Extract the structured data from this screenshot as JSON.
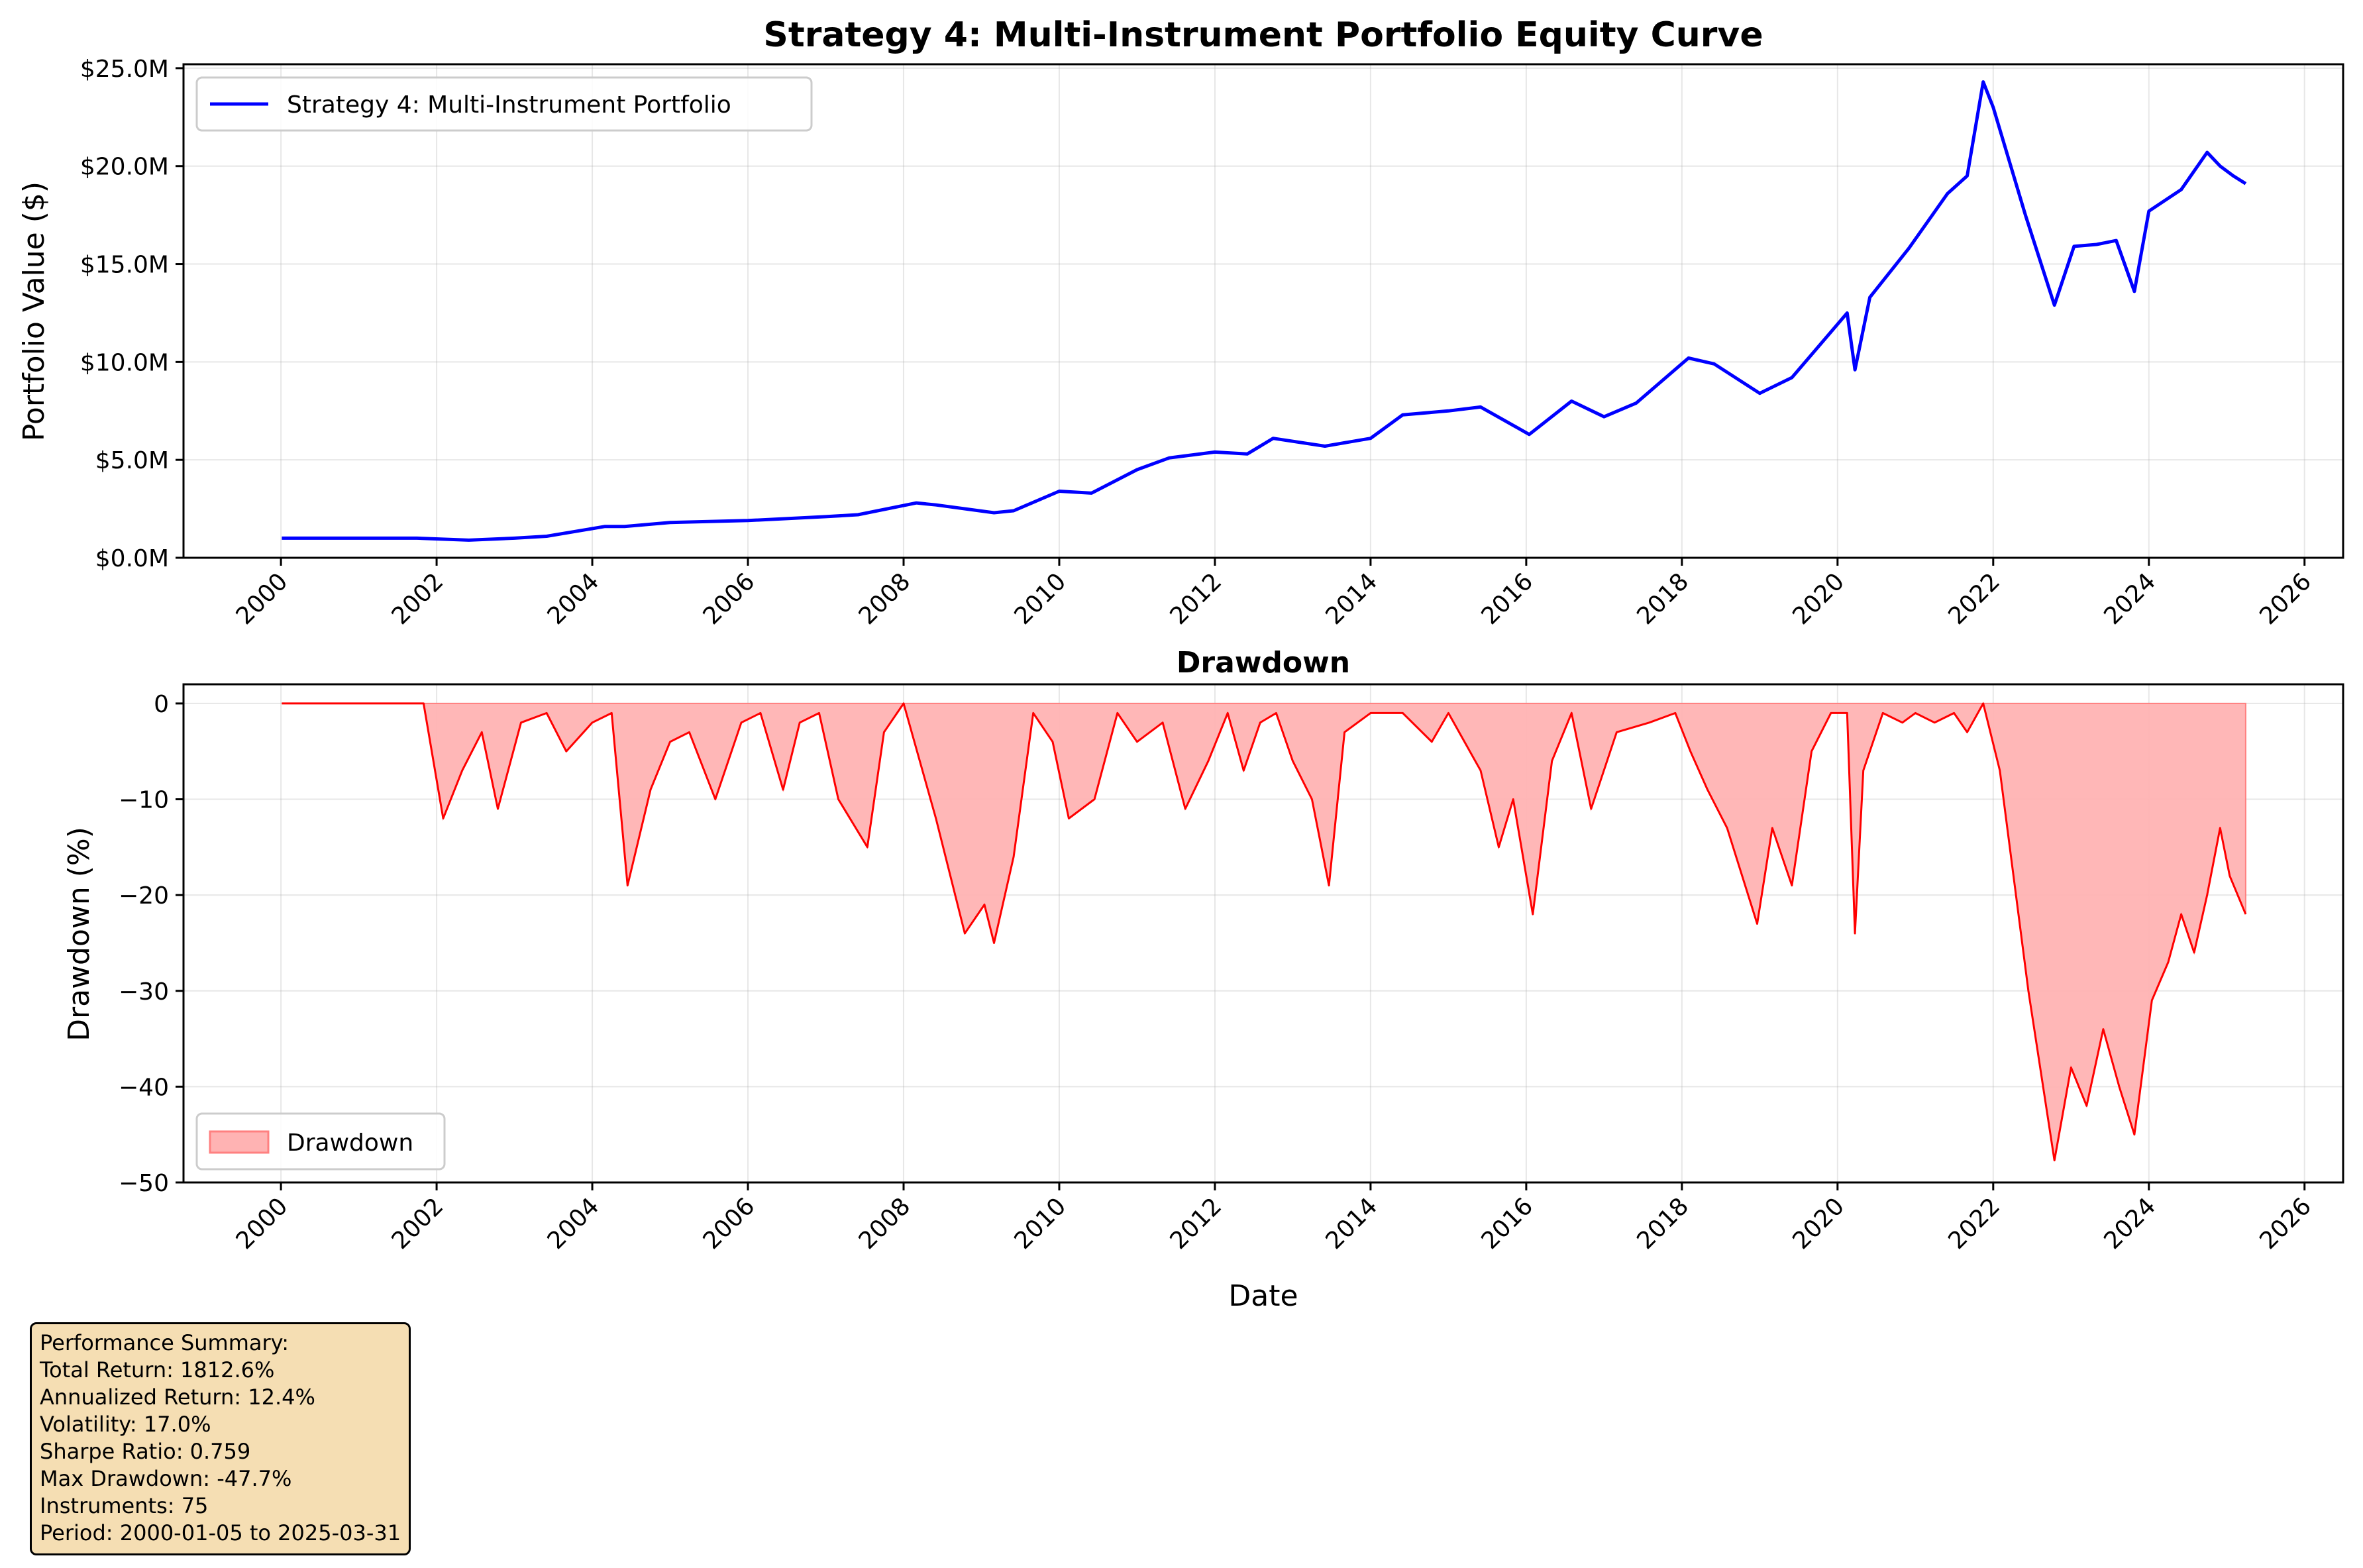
{
  "chart_data": [
    {
      "type": "line",
      "title": "Strategy 4: Multi-Instrument Portfolio Equity Curve",
      "xlabel": "",
      "ylabel": "Portfolio Value ($)",
      "xlim": [
        "1998-10-01",
        "2026-07-01"
      ],
      "ylim": [
        0,
        25.2
      ],
      "x_ticks": [
        "2000",
        "2002",
        "2004",
        "2006",
        "2008",
        "2010",
        "2012",
        "2014",
        "2016",
        "2018",
        "2020",
        "2022",
        "2024",
        "2026"
      ],
      "y_ticks": [
        "$0.0M",
        "$5.0M",
        "$10.0M",
        "$15.0M",
        "$20.0M",
        "$25.0M"
      ],
      "y_tick_values": [
        0,
        5,
        10,
        15,
        20,
        25
      ],
      "grid": true,
      "legend": {
        "position": "upper-left",
        "entries": [
          "Strategy 4: Multi-Instrument Portfolio"
        ]
      },
      "series": [
        {
          "name": "Strategy 4: Multi-Instrument Portfolio",
          "color": "#0000ff",
          "x": [
            "2000-01-05",
            "2001-10-01",
            "2002-06-01",
            "2003-01-01",
            "2003-06-01",
            "2004-03-01",
            "2004-06-01",
            "2005-01-01",
            "2006-01-01",
            "2007-01-01",
            "2007-06-01",
            "2008-03-01",
            "2008-06-01",
            "2009-03-01",
            "2009-06-01",
            "2010-01-01",
            "2010-06-01",
            "2011-01-01",
            "2011-06-01",
            "2012-01-01",
            "2012-06-01",
            "2012-10-01",
            "2013-06-01",
            "2014-01-01",
            "2014-06-01",
            "2015-01-01",
            "2015-06-01",
            "2016-01-15",
            "2016-08-01",
            "2017-01-01",
            "2017-06-01",
            "2018-02-01",
            "2018-06-01",
            "2019-01-01",
            "2019-06-01",
            "2020-02-15",
            "2020-03-23",
            "2020-06-01",
            "2020-12-01",
            "2021-06-01",
            "2021-09-01",
            "2021-11-15",
            "2022-01-01",
            "2022-06-01",
            "2022-10-15",
            "2023-01-15",
            "2023-05-01",
            "2023-08-01",
            "2023-10-25",
            "2024-01-01",
            "2024-06-01",
            "2024-10-01",
            "2024-12-01",
            "2025-02-01",
            "2025-03-31"
          ],
          "y": [
            1.0,
            1.0,
            0.9,
            1.0,
            1.1,
            1.6,
            1.6,
            1.8,
            1.9,
            2.1,
            2.2,
            2.8,
            2.7,
            2.3,
            2.4,
            3.4,
            3.3,
            4.5,
            5.1,
            5.4,
            5.3,
            6.1,
            5.7,
            6.1,
            7.3,
            7.5,
            7.7,
            6.3,
            8.0,
            7.2,
            7.9,
            10.2,
            9.9,
            8.4,
            9.2,
            12.5,
            9.6,
            13.3,
            15.8,
            18.6,
            19.5,
            24.3,
            23.0,
            17.5,
            12.9,
            15.9,
            16.0,
            16.2,
            13.6,
            17.7,
            18.8,
            20.7,
            20.0,
            19.5,
            19.1
          ]
        }
      ]
    },
    {
      "type": "area",
      "title": "Drawdown",
      "xlabel": "Date",
      "ylabel": "Drawdown (%)",
      "xlim": [
        "1998-10-01",
        "2026-07-01"
      ],
      "ylim": [
        -50,
        2
      ],
      "x_ticks": [
        "2000",
        "2002",
        "2004",
        "2006",
        "2008",
        "2010",
        "2012",
        "2014",
        "2016",
        "2018",
        "2020",
        "2022",
        "2024",
        "2026"
      ],
      "y_ticks": [
        "0",
        "−10",
        "−20",
        "−30",
        "−40",
        "−50"
      ],
      "y_tick_values": [
        0,
        -10,
        -20,
        -30,
        -40,
        -50
      ],
      "grid": true,
      "legend": {
        "position": "lower-left",
        "entries": [
          "Drawdown"
        ]
      },
      "series": [
        {
          "name": "Drawdown",
          "line_color": "#ff0000",
          "fill_color": "#ffb3b3",
          "x": [
            "2000-01-05",
            "2001-11-01",
            "2002-02-01",
            "2002-05-01",
            "2002-08-01",
            "2002-10-15",
            "2003-02-01",
            "2003-06-01",
            "2003-09-01",
            "2004-01-01",
            "2004-04-01",
            "2004-06-15",
            "2004-10-01",
            "2005-01-01",
            "2005-04-01",
            "2005-08-01",
            "2005-12-01",
            "2006-03-01",
            "2006-06-15",
            "2006-09-01",
            "2006-12-01",
            "2007-03-01",
            "2007-07-15",
            "2007-10-01",
            "2008-01-01",
            "2008-06-01",
            "2008-10-15",
            "2009-01-15",
            "2009-03-01",
            "2009-06-01",
            "2009-09-01",
            "2009-12-01",
            "2010-02-15",
            "2010-06-15",
            "2010-10-01",
            "2011-01-01",
            "2011-05-01",
            "2011-08-15",
            "2011-12-01",
            "2012-03-01",
            "2012-05-15",
            "2012-08-01",
            "2012-10-15",
            "2013-01-01",
            "2013-04-01",
            "2013-06-20",
            "2013-09-01",
            "2014-01-01",
            "2014-04-01",
            "2014-06-01",
            "2014-10-15",
            "2015-01-01",
            "2015-06-01",
            "2015-08-25",
            "2015-11-01",
            "2016-02-01",
            "2016-05-01",
            "2016-08-01",
            "2016-11-01",
            "2017-03-01",
            "2017-08-01",
            "2017-12-01",
            "2018-02-10",
            "2018-05-01",
            "2018-08-01",
            "2018-12-20",
            "2019-03-01",
            "2019-06-01",
            "2019-09-01",
            "2019-12-01",
            "2020-02-15",
            "2020-03-23",
            "2020-05-01",
            "2020-08-01",
            "2020-11-01",
            "2021-01-01",
            "2021-04-01",
            "2021-07-01",
            "2021-09-01",
            "2021-11-15",
            "2022-02-01",
            "2022-06-15",
            "2022-10-15",
            "2023-01-01",
            "2023-03-15",
            "2023-06-01",
            "2023-08-15",
            "2023-10-25",
            "2024-01-15",
            "2024-04-01",
            "2024-06-01",
            "2024-08-01",
            "2024-10-01",
            "2024-12-01",
            "2025-01-15",
            "2025-03-31"
          ],
          "y": [
            0,
            0,
            -12,
            -7,
            -3,
            -11,
            -2,
            -1,
            -5,
            -2,
            -1,
            -19,
            -9,
            -4,
            -3,
            -10,
            -2,
            -1,
            -9,
            -2,
            -1,
            -10,
            -15,
            -3,
            0,
            -12,
            -24,
            -21,
            -25,
            -16,
            -1,
            -4,
            -12,
            -10,
            -1,
            -4,
            -2,
            -11,
            -6,
            -1,
            -7,
            -2,
            -1,
            -6,
            -10,
            -19,
            -3,
            -1,
            -1,
            -1,
            -4,
            -1,
            -7,
            -15,
            -10,
            -22,
            -6,
            -1,
            -11,
            -3,
            -2,
            -1,
            -5,
            -9,
            -13,
            -23,
            -13,
            -19,
            -5,
            -1,
            -1,
            -24,
            -7,
            -1,
            -2,
            -1,
            -2,
            -1,
            -3,
            0,
            -7,
            -30,
            -47.7,
            -38,
            -42,
            -34,
            -40,
            -45,
            -31,
            -27,
            -22,
            -26,
            -20,
            -13,
            -18,
            -22
          ]
        }
      ]
    }
  ],
  "summary": {
    "lines": [
      "Performance Summary:",
      "Total Return: 1812.6%",
      "Annualized Return: 12.4%",
      "Volatility: 17.0%",
      "Sharpe Ratio: 0.759",
      "Max Drawdown: -47.7%",
      "Instruments: 75",
      "Period: 2000-01-05 to 2025-03-31"
    ]
  }
}
